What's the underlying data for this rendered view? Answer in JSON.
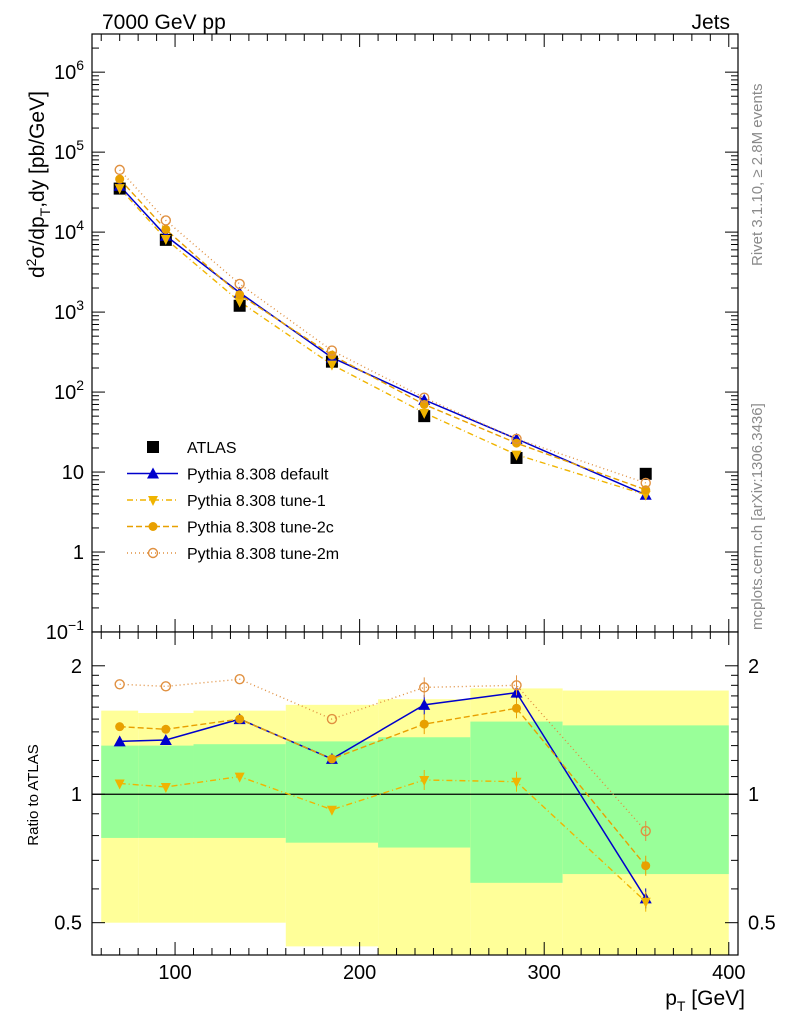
{
  "header": {
    "left": "7000 GeV pp",
    "right": "Jets"
  },
  "side_labels": {
    "rivet": "Rivet 3.1.10, ≥ 2.8M events",
    "mcplots": "mcplots.cern.ch [arXiv:1306.3436]"
  },
  "analysis_id": "ATLAS_2010_S8817804",
  "colors": {
    "atlas": "#000000",
    "default": "#0000cc",
    "tune1": "#f0b400",
    "tune2c": "#e8a000",
    "tune2m": "#e09040",
    "band_yellow": "#ffff99",
    "band_green": "#99ff99"
  },
  "chart_data": [
    {
      "type": "scatter",
      "ylabel_main": "d",
      "ylabel_sup": "2",
      "ylabel_rest1": "σ/dp",
      "ylabel_sub": "T",
      "ylabel_rest2": ",dy [pb/GeV]",
      "yscale": "log",
      "ylim": [
        0.1,
        3000000
      ],
      "xlim": [
        55,
        405
      ],
      "y_ticks": [
        {
          "v": 0.1,
          "base": "10",
          "exp": "−1"
        },
        {
          "v": 1,
          "base": "1",
          "exp": ""
        },
        {
          "v": 10,
          "base": "10",
          "exp": ""
        },
        {
          "v": 100,
          "base": "10",
          "exp": "2"
        },
        {
          "v": 1000,
          "base": "10",
          "exp": "3"
        },
        {
          "v": 10000,
          "base": "10",
          "exp": "4"
        },
        {
          "v": 100000,
          "base": "10",
          "exp": "5"
        },
        {
          "v": 1000000,
          "base": "10",
          "exp": "6"
        }
      ],
      "x": [
        70,
        95,
        135,
        185,
        235,
        285,
        355
      ],
      "series": [
        {
          "name": "ATLAS",
          "key": "atlas",
          "values": [
            35000,
            8000,
            1200,
            240,
            50,
            15,
            9.5
          ]
        },
        {
          "name": "Pythia 8.308 default",
          "key": "default",
          "values": [
            38000,
            9000,
            1750,
            270,
            80,
            26,
            5.2
          ]
        },
        {
          "name": "Pythia 8.308 tune-1",
          "key": "tune1",
          "values": [
            35500,
            8200,
            1350,
            220,
            55,
            16.5,
            5.2
          ]
        },
        {
          "name": "Pythia 8.308 tune-2c",
          "key": "tune2c",
          "values": [
            46000,
            10800,
            1650,
            290,
            70,
            23,
            6.0
          ]
        },
        {
          "name": "Pythia 8.308 tune-2m",
          "key": "tune2m",
          "values": [
            60000,
            14000,
            2250,
            330,
            85,
            26,
            7.3
          ]
        }
      ]
    },
    {
      "type": "scatter",
      "ylabel": "Ratio to ATLAS",
      "yscale": "log",
      "ylim": [
        0.42,
        2.4
      ],
      "xlim": [
        55,
        405
      ],
      "y_ticks": [
        "0.5",
        "1",
        "2"
      ],
      "x_ticks": [
        "100",
        "200",
        "300",
        "400"
      ],
      "xlabel_main": "p",
      "xlabel_sub": "T",
      "xlabel_rest": " [GeV]",
      "bins": [
        [
          60,
          80
        ],
        [
          80,
          110
        ],
        [
          110,
          160
        ],
        [
          160,
          210
        ],
        [
          210,
          260
        ],
        [
          260,
          310
        ],
        [
          310,
          400
        ]
      ],
      "band_yellow": [
        [
          0.5,
          1.57
        ],
        [
          0.5,
          1.55
        ],
        [
          0.5,
          1.57
        ],
        [
          0.44,
          1.62
        ],
        [
          0.4,
          1.67
        ],
        [
          0.4,
          1.77
        ],
        [
          0.4,
          1.75
        ]
      ],
      "band_green": [
        [
          0.79,
          1.3
        ],
        [
          0.79,
          1.3
        ],
        [
          0.79,
          1.31
        ],
        [
          0.77,
          1.33
        ],
        [
          0.75,
          1.36
        ],
        [
          0.62,
          1.48
        ],
        [
          0.65,
          1.45
        ]
      ],
      "x": [
        70,
        95,
        135,
        185,
        235,
        285,
        355
      ],
      "series": [
        {
          "name": "Pythia 8.308 default",
          "key": "default",
          "values": [
            1.33,
            1.34,
            1.5,
            1.21,
            1.62,
            1.73,
            0.57
          ]
        },
        {
          "name": "Pythia 8.308 tune-1",
          "key": "tune1",
          "values": [
            1.06,
            1.04,
            1.1,
            0.92,
            1.08,
            1.07,
            0.56
          ]
        },
        {
          "name": "Pythia 8.308 tune-2c",
          "key": "tune2c",
          "values": [
            1.44,
            1.42,
            1.5,
            1.21,
            1.46,
            1.59,
            0.68
          ]
        },
        {
          "name": "Pythia 8.308 tune-2m",
          "key": "tune2m",
          "values": [
            1.81,
            1.79,
            1.86,
            1.5,
            1.78,
            1.8,
            0.82
          ]
        }
      ]
    }
  ]
}
